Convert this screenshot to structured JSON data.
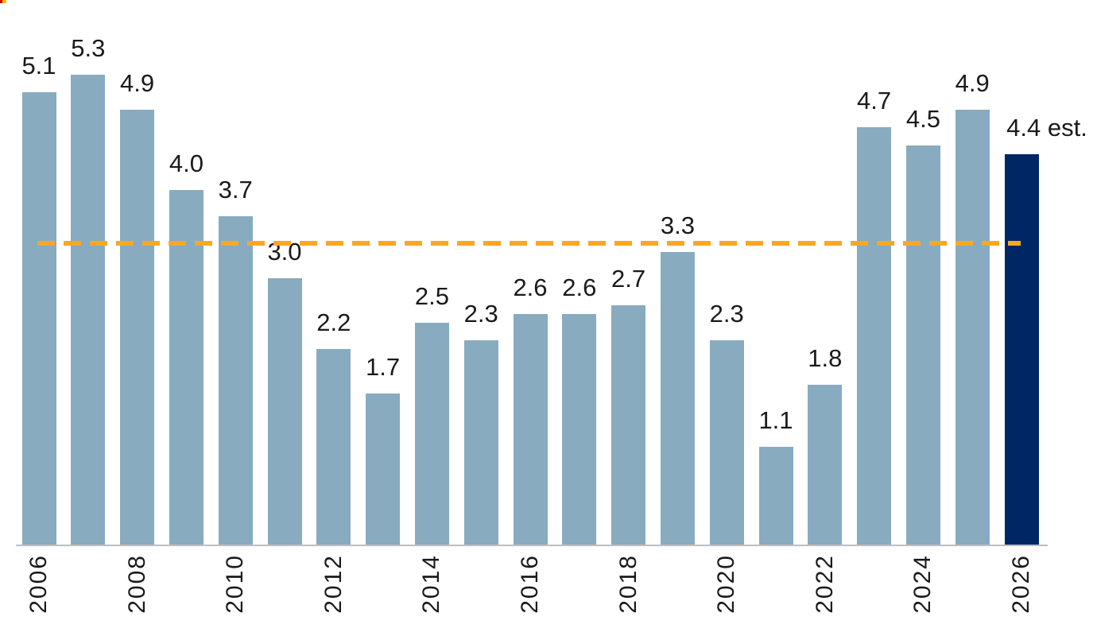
{
  "decoration": {
    "corner_mark_red": "#d00000",
    "corner_mark_yellow": "#ffc000"
  },
  "chart_data": {
    "type": "bar",
    "title": "",
    "xlabel": "",
    "ylabel": "",
    "categories": [
      "2006",
      "2007",
      "2008",
      "2009",
      "2010",
      "2011",
      "2012",
      "2013",
      "2014",
      "2015",
      "2016",
      "2017",
      "2018",
      "2019",
      "2020",
      "2021",
      "2022",
      "2023",
      "2024",
      "2025",
      "2026"
    ],
    "values": [
      5.1,
      5.3,
      4.9,
      4.0,
      3.7,
      3.0,
      2.2,
      1.7,
      2.5,
      2.3,
      2.6,
      2.6,
      2.7,
      3.3,
      2.3,
      1.1,
      1.8,
      4.7,
      4.5,
      4.9,
      4.4
    ],
    "value_labels": [
      "5.1",
      "5.3",
      "4.9",
      "4.0",
      "3.7",
      "3.0",
      "2.2",
      "1.7",
      "2.5",
      "2.3",
      "2.6",
      "2.6",
      "2.7",
      "3.3",
      "2.3",
      "1.1",
      "1.8",
      "4.7",
      "4.5",
      "4.9",
      "4.4 est."
    ],
    "x_tick_labels": [
      "2006",
      "2008",
      "2010",
      "2012",
      "2014",
      "2016",
      "2018",
      "2020",
      "2022",
      "2024",
      "2026"
    ],
    "highlight_index": 20,
    "highlight_note": "est.",
    "reference_line": {
      "value": 3.4,
      "style": "dashed",
      "color": "#f8a823"
    },
    "ylim": [
      0,
      5.5
    ],
    "grid": false,
    "legend": false,
    "colors": {
      "bar": "#88abc0",
      "highlight_bar": "#002664",
      "axis_line": "#bfbfbf",
      "label_text": "#1a1a1a"
    }
  }
}
